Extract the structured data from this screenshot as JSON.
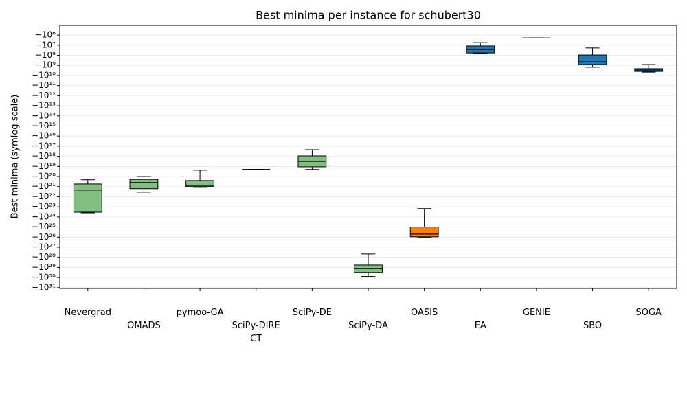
{
  "chart_data": {
    "type": "box",
    "title": "Best minima per instance for schubert30",
    "ylabel": "Best minima (symlog scale)",
    "yscale": "symlog",
    "grid": true,
    "categories": [
      "Nevergrad",
      "OMADS",
      "pymoo-GA",
      "SciPy-DIRECT",
      "SciPy-DE",
      "SciPy-DA",
      "OASIS",
      "EA",
      "GENIE",
      "SBO",
      "SOGA"
    ],
    "colors": [
      "#7fbf7f",
      "#7fbf7f",
      "#7fbf7f",
      "#7fbf7f",
      "#7fbf7f",
      "#7fbf7f",
      "#ff7f0e",
      "#1f77b4",
      "#1f77b4",
      "#1f77b4",
      "#1f77b4"
    ],
    "whislo": [
      -4e+23,
      -3.6e+21,
      -1.2e+21,
      -2e+19,
      -2e+19,
      -7.9e+29,
      -1.1e+26,
      -68000000.0,
      -1900000.0,
      -1500000000.0,
      -4700000000.0
    ],
    "q1": [
      -3.4e+23,
      -1.6e+21,
      -1e+21,
      -2e+19,
      -1.1e+19,
      -3.2e+29,
      -9.3e+25,
      -59000000.0,
      -1900000.0,
      -830000000.0,
      -4000000000.0
    ],
    "median": [
      -2.2e+21,
      -4e+20,
      -7.6e+20,
      -2e+19,
      -3.2e+18,
      -1.3e+29,
      -5e+25,
      -27000000.0,
      -1900000.0,
      -450000000.0,
      -2900000000.0
    ],
    "q3": [
      -5.5e+20,
      -1.9e+20,
      -2.5e+20,
      -2e+19,
      -9.1e+17,
      -5.8e+28,
      -1e+25,
      -12000000.0,
      -1900000.0,
      -93000000.0,
      -2100000000.0
    ],
    "whishi": [
      -2.1e+20,
      -1e+20,
      -2.4e+19,
      -2e+19,
      -2.2e+17,
      -4.7e+27,
      -1.5e+23,
      -5600000.0,
      -1900000.0,
      -19000000.0,
      -830000000.0
    ],
    "ylim": [
      -1.2e+31,
      -110000.0
    ],
    "yticks": [
      {
        "value": -1000000.0,
        "label": "−10⁶"
      },
      {
        "value": -10000000.0,
        "label": "−10⁷"
      },
      {
        "value": -100000000.0,
        "label": "−10⁸"
      },
      {
        "value": -1000000000.0,
        "label": "−10⁹"
      },
      {
        "value": -10000000000.0,
        "label": "−10¹⁰"
      },
      {
        "value": -100000000000.0,
        "label": "−10¹¹"
      },
      {
        "value": -1000000000000.0,
        "label": "−10¹²"
      },
      {
        "value": -10000000000000.0,
        "label": "−10¹³"
      },
      {
        "value": -100000000000000.0,
        "label": "−10¹⁴"
      },
      {
        "value": -1000000000000000.0,
        "label": "−10¹⁵"
      },
      {
        "value": -1e+16,
        "label": "−10¹⁶"
      },
      {
        "value": -1e+17,
        "label": "−10¹⁷"
      },
      {
        "value": -1e+18,
        "label": "−10¹⁸"
      },
      {
        "value": -1e+19,
        "label": "−10¹⁹"
      },
      {
        "value": -1e+20,
        "label": "−10²⁰"
      },
      {
        "value": -1e+21,
        "label": "−10²¹"
      },
      {
        "value": -1e+22,
        "label": "−10²²"
      },
      {
        "value": -1e+23,
        "label": "−10²³"
      },
      {
        "value": -1e+24,
        "label": "−10²⁴"
      },
      {
        "value": -1e+25,
        "label": "−10²⁵"
      },
      {
        "value": -1e+26,
        "label": "−10²⁶"
      },
      {
        "value": -1e+27,
        "label": "−10²⁷"
      },
      {
        "value": -1e+28,
        "label": "−10²⁸"
      },
      {
        "value": -1e+29,
        "label": "−10²⁹"
      },
      {
        "value": -1e+30,
        "label": "−10³⁰"
      },
      {
        "value": -1e+31,
        "label": "−10³¹"
      }
    ]
  }
}
